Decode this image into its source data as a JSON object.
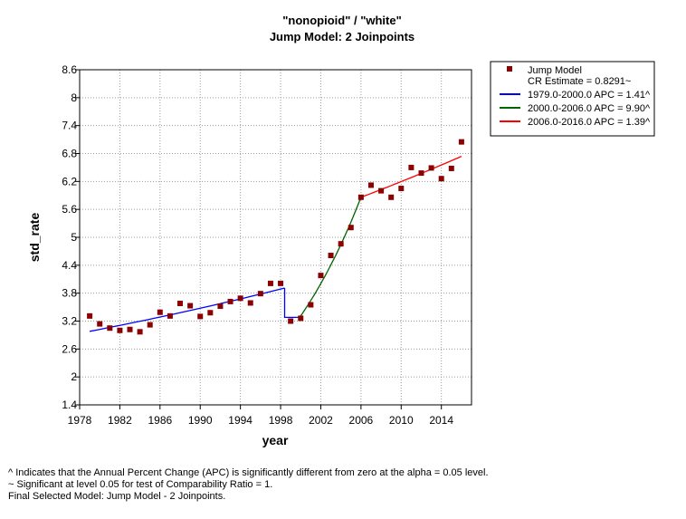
{
  "chart_data": {
    "type": "scatter",
    "title": "\"nonopioid\" / \"white\"",
    "subtitle": "Jump Model: 2 Joinpoints",
    "xlabel": "year",
    "ylabel": "std_rate",
    "xlim": [
      1978,
      2017
    ],
    "ylim": [
      1.4,
      8.6
    ],
    "xticks": [
      1978,
      1982,
      1986,
      1990,
      1994,
      1998,
      2002,
      2006,
      2010,
      2014
    ],
    "yticks": [
      1.4,
      2,
      2.6,
      3.2,
      3.8,
      4.4,
      5,
      5.6,
      6.2,
      6.8,
      7.4,
      8,
      8.6
    ],
    "grid": true,
    "legend_position": "top-right",
    "points": {
      "name": "Jump Model",
      "color": "#8b0000",
      "x": [
        1979,
        1980,
        1981,
        1982,
        1983,
        1984,
        1985,
        1986,
        1987,
        1988,
        1989,
        1990,
        1991,
        1992,
        1993,
        1994,
        1995,
        1996,
        1997,
        1998,
        1999,
        2000,
        2001,
        2002,
        2003,
        2004,
        2005,
        2006,
        2007,
        2008,
        2009,
        2010,
        2011,
        2012,
        2013,
        2014,
        2015,
        2016
      ],
      "y": [
        3.31,
        3.14,
        3.05,
        3.0,
        3.02,
        2.97,
        3.12,
        3.39,
        3.31,
        3.58,
        3.53,
        3.3,
        3.38,
        3.52,
        3.62,
        3.69,
        3.59,
        3.79,
        4.01,
        4.01,
        3.2,
        3.26,
        3.55,
        4.18,
        4.61,
        4.86,
        5.21,
        5.86,
        6.12,
        6.0,
        5.86,
        6.05,
        6.5,
        6.38,
        6.49,
        6.26,
        6.48,
        7.05
      ]
    },
    "series": [
      {
        "name": "1979.0-2000.0 APC  = 1.41^",
        "color": "#0000ff",
        "x": [
          1979,
          1998.4
        ],
        "y": [
          2.98,
          3.91
        ],
        "curve": "exponential"
      },
      {
        "name": "2000.0-2006.0 APC  = 9.90^",
        "color": "#006400",
        "x": [
          1999.9,
          2006
        ],
        "y": [
          3.28,
          5.86
        ],
        "curve": "exponential"
      },
      {
        "name": "2006.0-2016.0 APC  = 1.39^",
        "color": "#ff0000",
        "x": [
          2006,
          2016
        ],
        "y": [
          5.86,
          6.74
        ],
        "curve": "exponential"
      }
    ],
    "jump": {
      "x": 1998.4,
      "y_from": 3.91,
      "y_to": 3.28,
      "x_end": 1999.9,
      "color": "#0000ff"
    },
    "legend": {
      "model_label": "Jump Model",
      "cr_label": "CR Estimate = 0.8291~"
    }
  },
  "footnotes": [
    "^ Indicates that the Annual Percent Change (APC) is significantly different from zero at the alpha = 0.05 level.",
    "~ Significant at level 0.05 for test of Comparability Ratio = 1.",
    "Final Selected Model: Jump Model - 2 Joinpoints."
  ]
}
